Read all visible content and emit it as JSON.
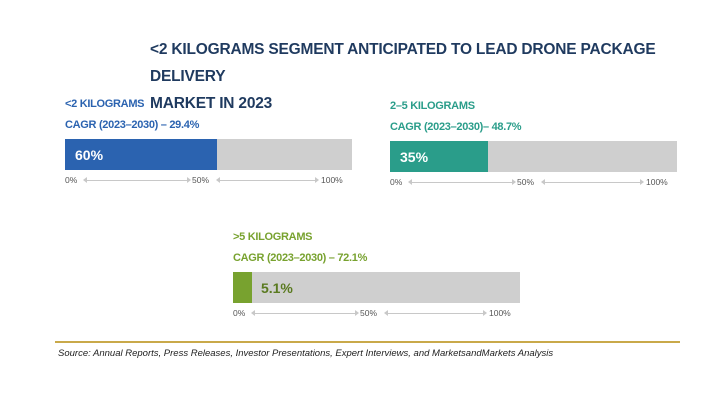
{
  "chart_data": {
    "type": "bar",
    "title": "<2 KILOGRAMS SEGMENT ANTICIPATED TO LEAD DRONE PACKAGE DELIVERY MARKET IN 2023",
    "title_lines": [
      "<2 KILOGRAMS SEGMENT ANTICIPATED TO LEAD DRONE PACKAGE DELIVERY",
      "MARKET IN 2023"
    ],
    "axis_ticks": [
      "0%",
      "50%",
      "100%"
    ],
    "panels": [
      {
        "segment": "<2 KILOGRAMS",
        "cagr": "CAGR (2023–2030) – 29.4%",
        "value": 60,
        "label": "60%",
        "fill_percent": 53,
        "color": "#2b63b0",
        "label_color": "#ffffff",
        "text_color": "#2b63b0"
      },
      {
        "segment": "2–5 KILOGRAMS",
        "cagr": "CAGR  (2023–2030)– 48.7%",
        "value": 35,
        "label": "35%",
        "fill_percent": 34,
        "color": "#2a9d8a",
        "label_color": "#ffffff",
        "text_color": "#2a9d8a"
      },
      {
        "segment": ">5 KILOGRAMS",
        "cagr": "CAGR (2023–2030) – 72.1%",
        "value": 5.1,
        "label": "5.1%",
        "fill_percent": 6.6,
        "color": "#78a22f",
        "label_color": "#5a7a20",
        "text_color": "#78a22f"
      }
    ]
  },
  "source": "Source: Annual Reports, Press Releases, Investor Presentations, Expert Interviews, and MarketsandMarkets Analysis"
}
